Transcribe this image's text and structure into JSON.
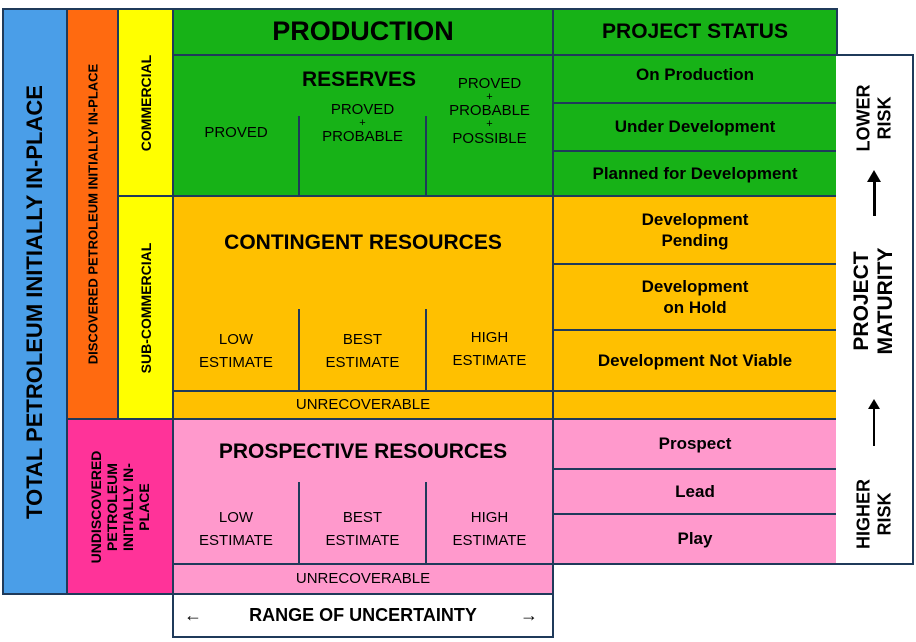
{
  "colors": {
    "blue": "#4a9ee8",
    "orange": "#ff6a10",
    "yellow": "#ffff00",
    "green": "#17b217",
    "amber": "#ffc000",
    "pink": "#ff99cc",
    "magenta": "#ff3399",
    "border": "#1f3a5a"
  },
  "left": {
    "total": "TOTAL PETROLEUM INITIALLY IN-PLACE",
    "discovered": "DISCOVERED PETROLEUM INITIALLY IN-PLACE",
    "commercial": "COMMERCIAL",
    "sub_commercial": "SUB-COMMERCIAL",
    "undiscovered_lines": [
      "UNDISCOVERED",
      "PETROLEUM",
      "INITIALLY IN-",
      "PLACE"
    ]
  },
  "production": "PRODUCTION",
  "reserves": {
    "title": "RESERVES",
    "proved": "PROVED",
    "p2_lines": [
      "PROVED",
      "+",
      "PROBABLE"
    ],
    "p3_lines": [
      "PROVED",
      "+",
      "PROBABLE",
      "+",
      "POSSIBLE"
    ]
  },
  "contingent": {
    "title": "CONTINGENT  RESOURCES",
    "low_lines": [
      "LOW",
      "ESTIMATE"
    ],
    "best_lines": [
      "BEST",
      "ESTIMATE"
    ],
    "high_lines": [
      "HIGH",
      "ESTIMATE"
    ],
    "unrecoverable": "UNRECOVERABLE"
  },
  "prospective": {
    "title": "PROSPECTIVE RESOURCES",
    "low_lines": [
      "LOW",
      "ESTIMATE"
    ],
    "best_lines": [
      "BEST",
      "ESTIMATE"
    ],
    "high_lines": [
      "HIGH",
      "ESTIMATE"
    ],
    "unrecoverable": "UNRECOVERABLE"
  },
  "uncertainty": {
    "left_arrow": "←",
    "label": "RANGE OF UNCERTAINTY",
    "right_arrow": "→"
  },
  "status": {
    "header": "PROJECT STATUS",
    "on_production": "On Production",
    "under_development": "Under Development",
    "planned": "Planned for Development",
    "pending_lines": [
      "Development",
      "Pending"
    ],
    "on_hold_lines": [
      "Development",
      "on Hold"
    ],
    "not_viable": "Development Not Viable",
    "prospect": "Prospect",
    "lead": "Lead",
    "play": "Play"
  },
  "maturity": {
    "lower_risk_lines": [
      "LOWER",
      "RISK"
    ],
    "project_maturity_lines": [
      "PROJECT",
      "MATURITY"
    ],
    "higher_risk_lines": [
      "HIGHER",
      "RISK"
    ]
  }
}
